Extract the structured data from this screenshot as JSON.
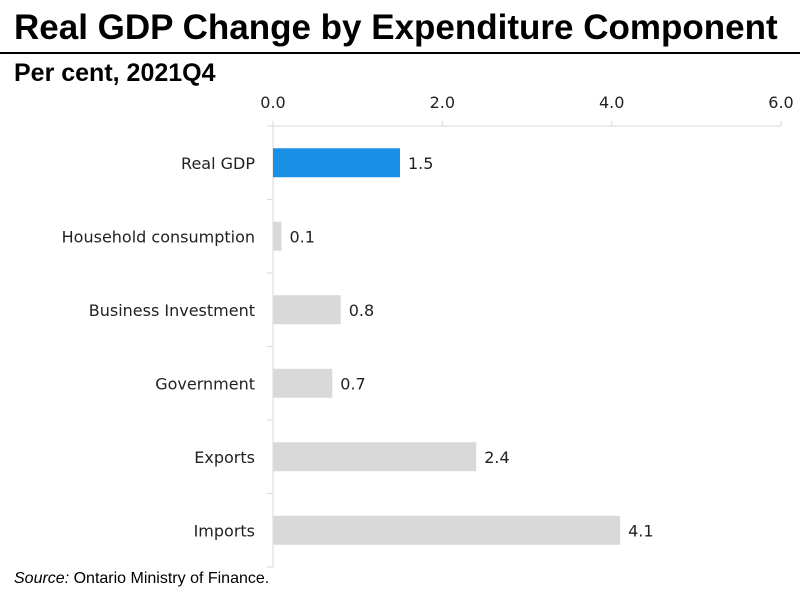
{
  "title": "Real GDP Change by Expenditure Component",
  "subtitle": "Per cent, 2021Q4",
  "source_label": "Source:",
  "source_text": "Ontario Ministry of Finance.",
  "colors": {
    "highlight": "#1a8fe6",
    "default": "#d9d9d9",
    "axis": "#d9d9d9"
  },
  "chart_data": {
    "type": "bar",
    "orientation": "horizontal",
    "categories": [
      "Real GDP",
      "Household consumption",
      "Business Investment",
      "Government",
      "Exports",
      "Imports"
    ],
    "values": [
      1.5,
      0.1,
      0.8,
      0.7,
      2.4,
      4.1
    ],
    "value_labels": [
      "1.5",
      "0.1",
      "0.8",
      "0.7",
      "2.4",
      "4.1"
    ],
    "highlight_index": 0,
    "xlim": [
      0,
      6
    ],
    "xticks": [
      0,
      2,
      4,
      6
    ],
    "xtick_labels": [
      "0.0",
      "2.0",
      "4.0",
      "6.0"
    ],
    "axis_position": "top",
    "grid": false,
    "title": "Real GDP Change by Expenditure Component",
    "xlabel": "",
    "ylabel": ""
  }
}
